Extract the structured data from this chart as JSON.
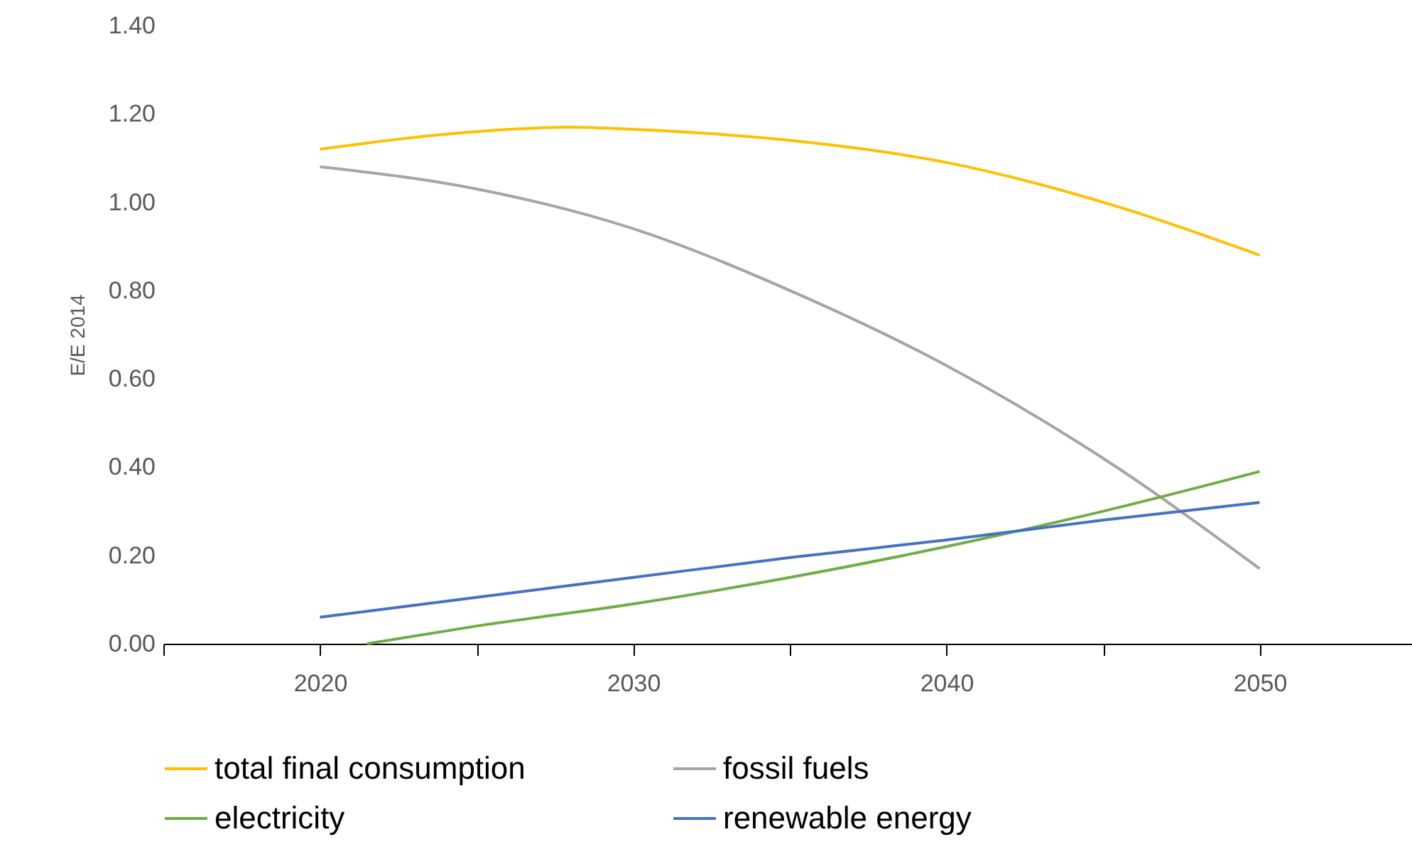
{
  "chart_data": {
    "type": "line",
    "ylabel": "E/E 2014",
    "xlim": [
      2015,
      2055
    ],
    "ylim": [
      0,
      1.4
    ],
    "xticks": [
      {
        "value": 2015,
        "label": null
      },
      2020,
      {
        "value": 2025,
        "label": null
      },
      2030,
      {
        "value": 2035,
        "label": null
      },
      2040,
      {
        "value": 2045,
        "label": null
      },
      2050
    ],
    "yticks": [
      {
        "value": 0,
        "label": "0.00"
      },
      {
        "value": 0.2,
        "label": "0.20"
      },
      {
        "value": 0.4,
        "label": "0.40"
      },
      {
        "value": 0.6,
        "label": "0.60"
      },
      {
        "value": 0.8,
        "label": "0.80"
      },
      {
        "value": 1,
        "label": "1.00"
      },
      {
        "value": 1.2,
        "label": "1.20"
      },
      {
        "value": 1.4,
        "label": "1.40"
      }
    ],
    "grid": false,
    "legend": "bottom",
    "marker": "none",
    "line_style": "solid",
    "series": [
      {
        "name": "total final consumption",
        "color": "#ffc000",
        "x": [
          2020,
          2025,
          2028,
          2030,
          2035,
          2040,
          2045,
          2050
        ],
        "values": [
          1.12,
          1.16,
          1.17,
          1.165,
          1.14,
          1.09,
          1.0,
          0.88
        ]
      },
      {
        "name": "fossil fuels",
        "color": "#a5a5a5",
        "x": [
          2020,
          2025,
          2030,
          2035,
          2040,
          2045,
          2050
        ],
        "values": [
          1.08,
          1.03,
          0.94,
          0.8,
          0.63,
          0.42,
          0.17
        ]
      },
      {
        "name": "electricity",
        "color": "#70ad47",
        "x": [
          2021.5,
          2025,
          2030,
          2035,
          2040,
          2045,
          2050
        ],
        "values": [
          0,
          0.04,
          0.09,
          0.15,
          0.22,
          0.3,
          0.39
        ]
      },
      {
        "name": "renewable energy",
        "color": "#4472c4",
        "x": [
          2020,
          2025,
          2030,
          2035,
          2040,
          2045,
          2050
        ],
        "values": [
          0.06,
          0.105,
          0.15,
          0.195,
          0.235,
          0.28,
          0.32
        ]
      }
    ]
  }
}
